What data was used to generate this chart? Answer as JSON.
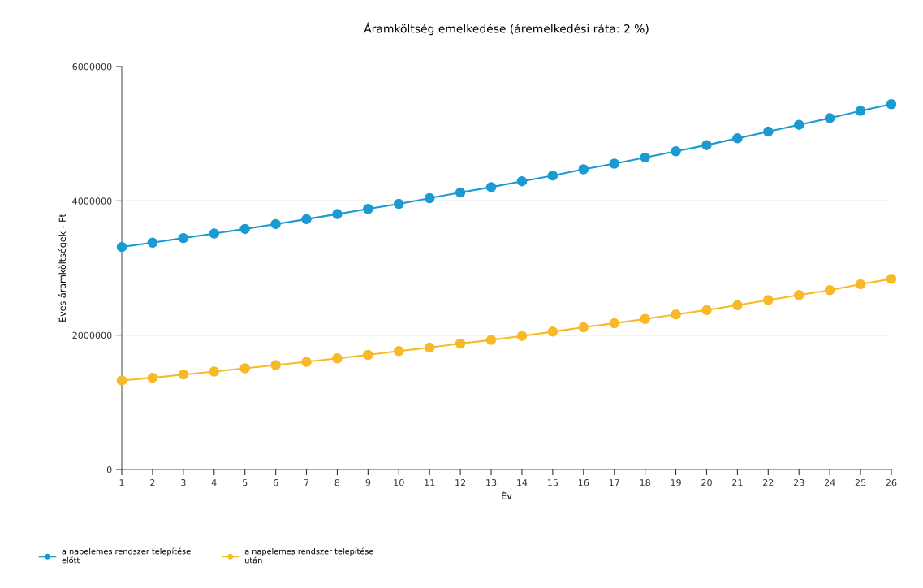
{
  "chart_data": {
    "type": "line",
    "title": "Áramköltség emelkedése (áremelkedési ráta: 2 %)",
    "xlabel": "Év",
    "ylabel": "Éves áramköltségek - Ft",
    "x": [
      1,
      2,
      3,
      4,
      5,
      6,
      7,
      8,
      9,
      10,
      11,
      12,
      13,
      14,
      15,
      16,
      17,
      18,
      19,
      20,
      21,
      22,
      23,
      24,
      25,
      26
    ],
    "series": [
      {
        "name": "a napelemes rendszer telepítése\nelőtt",
        "color": "#1b9ad2",
        "values": [
          3313000,
          3377000,
          3446000,
          3513000,
          3582000,
          3654000,
          3727000,
          3803000,
          3880000,
          3955000,
          4040000,
          4124000,
          4205000,
          4292000,
          4377000,
          4470000,
          4554000,
          4646000,
          4739000,
          4831000,
          4931000,
          5031000,
          5133000,
          5233000,
          5341000,
          5441000
        ]
      },
      {
        "name": "a napelemes rendszer telepítése\nután",
        "color": "#f7b928",
        "values": [
          1325000,
          1365000,
          1413000,
          1458000,
          1506000,
          1554000,
          1602000,
          1654000,
          1706000,
          1763000,
          1815000,
          1875000,
          1928000,
          1988000,
          2052000,
          2116000,
          2176000,
          2241000,
          2308000,
          2373000,
          2446000,
          2522000,
          2598000,
          2670000,
          2759000,
          2839000
        ]
      }
    ],
    "xlim": [
      1,
      26
    ],
    "xticks": [
      1,
      2,
      3,
      4,
      5,
      6,
      7,
      8,
      9,
      10,
      11,
      12,
      13,
      14,
      15,
      16,
      17,
      18,
      19,
      20,
      21,
      22,
      23,
      24,
      25,
      26
    ],
    "ylim": [
      0,
      6000000
    ],
    "yticks": [
      0,
      2000000,
      4000000,
      6000000
    ],
    "grid": "y",
    "legend": "bottom left",
    "marker": "circle",
    "line_style": "solid"
  }
}
